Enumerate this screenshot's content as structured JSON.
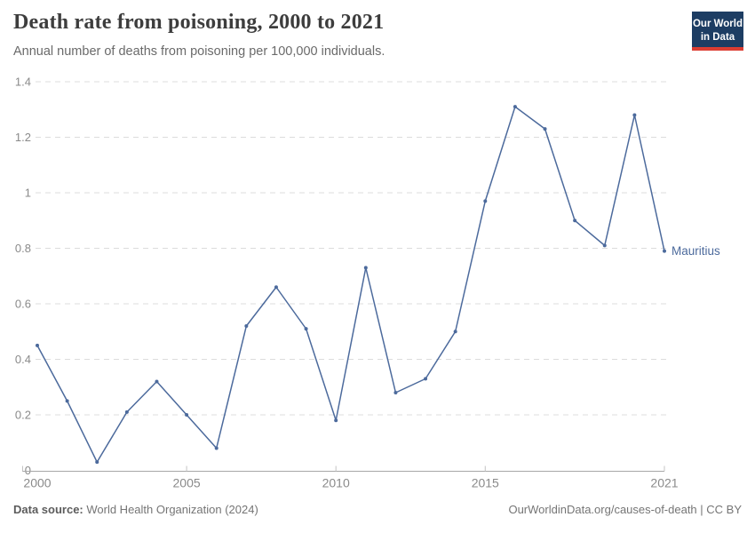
{
  "header": {
    "title": "Death rate from poisoning, 2000 to 2021",
    "subtitle": "Annual number of deaths from poisoning per 100,000 individuals.",
    "logo": {
      "line1": "Our World",
      "line2": "in Data"
    }
  },
  "chart_data": {
    "type": "line",
    "title": "Death rate from poisoning, 2000 to 2021",
    "subtitle": "Annual number of deaths from poisoning per 100,000 individuals.",
    "xlabel": "",
    "ylabel": "",
    "x": [
      2000,
      2001,
      2002,
      2003,
      2004,
      2005,
      2006,
      2007,
      2008,
      2009,
      2010,
      2011,
      2012,
      2013,
      2014,
      2015,
      2016,
      2017,
      2018,
      2019,
      2020,
      2021
    ],
    "series": [
      {
        "name": "Mauritius",
        "color": "#4C6A9C",
        "values": [
          0.45,
          0.25,
          0.03,
          0.21,
          0.32,
          0.2,
          0.08,
          0.52,
          0.66,
          0.51,
          0.18,
          0.73,
          0.28,
          0.33,
          0.5,
          0.97,
          1.31,
          1.23,
          0.9,
          0.81,
          1.28,
          0.79
        ]
      }
    ],
    "xlim": [
      2000,
      2021
    ],
    "ylim": [
      0,
      1.4
    ],
    "yticks": [
      0,
      0.2,
      0.4,
      0.6,
      0.8,
      1,
      1.2,
      1.4
    ],
    "xticks": [
      2000,
      2005,
      2010,
      2015,
      2021
    ],
    "grid": "horizontal-dashed",
    "legend_position": "end-of-line-label",
    "style": {
      "grid_color": "#dcdcdc",
      "axis_color": "#a8a8a8",
      "tick_color": "#c4c4c4",
      "tick_label_color": "#8a8a8a"
    }
  },
  "footer": {
    "datasource_label": "Data source:",
    "datasource_value": " World Health Organization (2024)",
    "attribution": "OurWorldinData.org/causes-of-death | CC BY"
  },
  "colors": {
    "line": "#4C6A9C",
    "logo_bg": "#1d3d63",
    "logo_stripe": "#dc3d32",
    "title_text": "#3d3d3d",
    "subtitle_text": "#6a6a6a"
  }
}
